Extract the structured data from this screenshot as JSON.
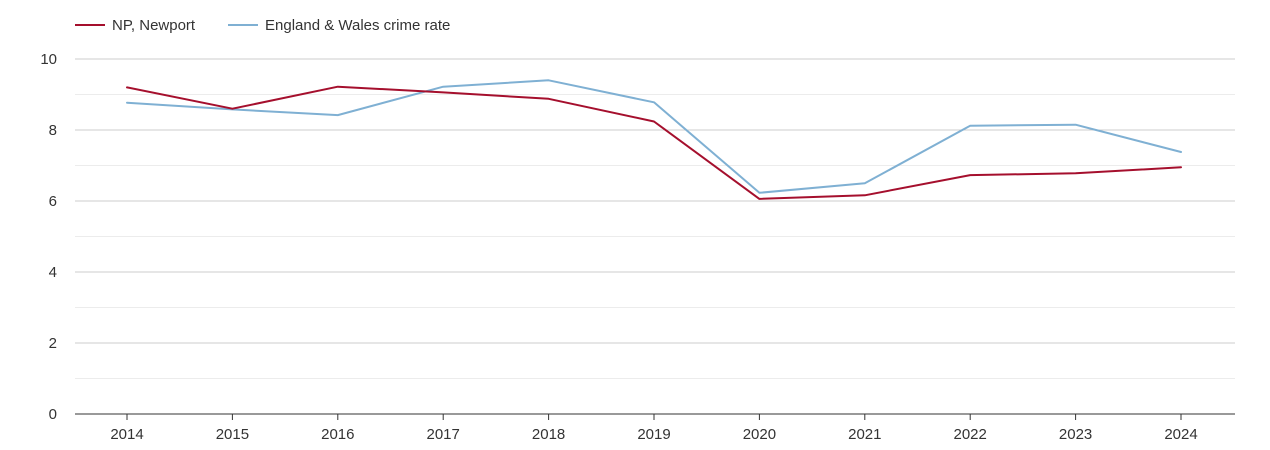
{
  "chart_data": {
    "type": "line",
    "title": "",
    "xlabel": "",
    "ylabel": "",
    "categories": [
      "2014",
      "2015",
      "2016",
      "2017",
      "2018",
      "2019",
      "2020",
      "2021",
      "2022",
      "2023",
      "2024"
    ],
    "series": [
      {
        "name": "NP, Newport",
        "color": "#a50f2d",
        "values": [
          9.2,
          8.6,
          9.22,
          9.06,
          8.88,
          8.24,
          6.06,
          6.16,
          6.73,
          6.78,
          6.95
        ]
      },
      {
        "name": "England & Wales crime rate",
        "color": "#7fb0d3",
        "values": [
          8.77,
          8.58,
          8.42,
          9.22,
          9.4,
          8.78,
          6.23,
          6.5,
          8.12,
          8.15,
          7.38
        ]
      }
    ],
    "yticks": [
      "0",
      "2",
      "4",
      "6",
      "8",
      "10"
    ],
    "ylim": [
      0,
      10
    ],
    "grid": true,
    "legend_position": "top-left"
  }
}
